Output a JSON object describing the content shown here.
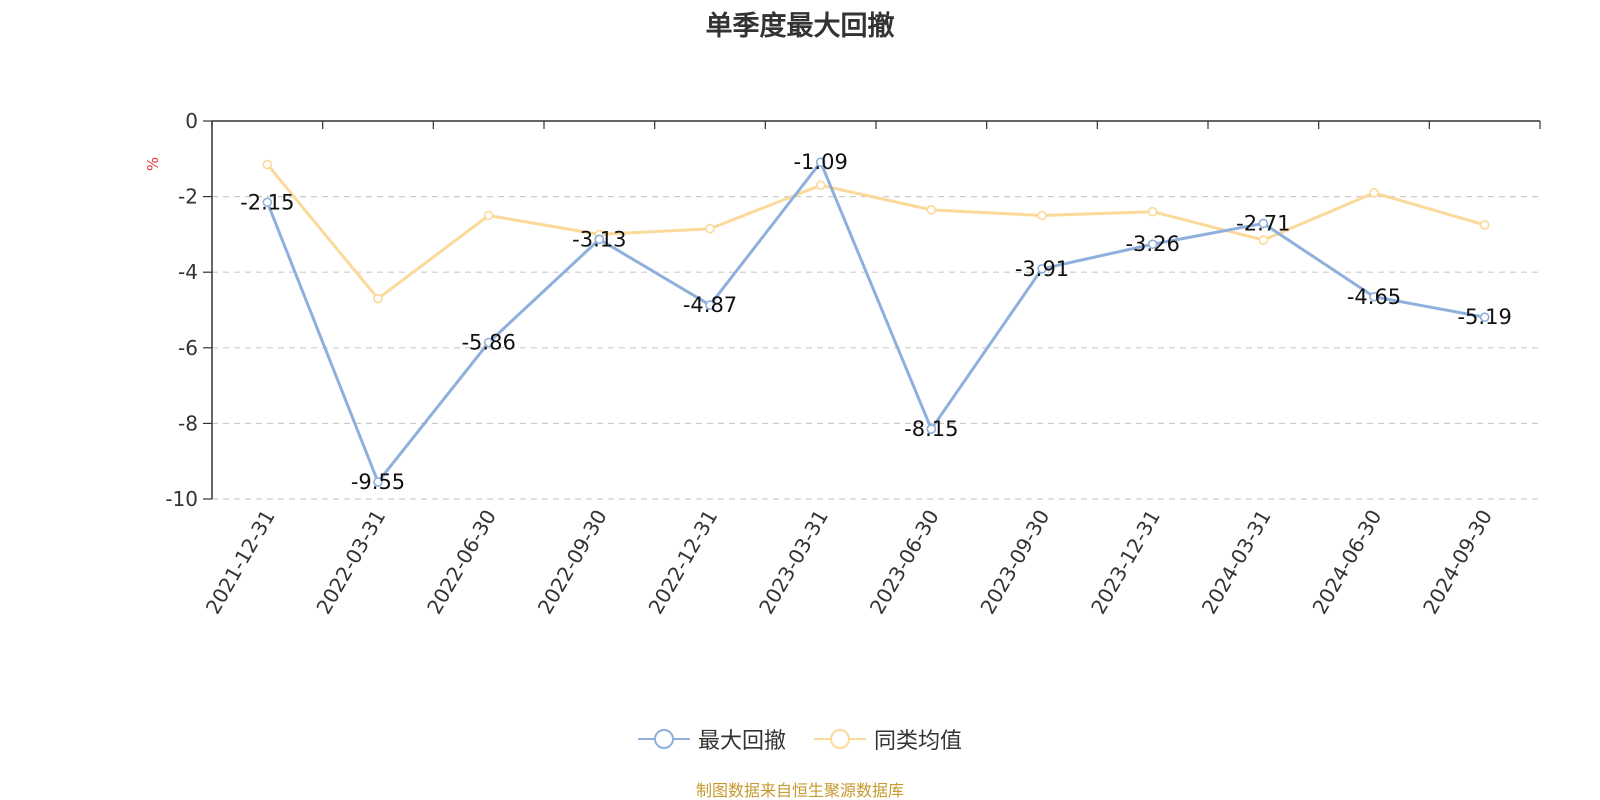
{
  "chart_data": {
    "type": "line",
    "title": "单季度最大回撤",
    "ylabel": "%",
    "categories": [
      "2021-12-31",
      "2022-03-31",
      "2022-06-30",
      "2022-09-30",
      "2022-12-31",
      "2023-03-31",
      "2023-06-30",
      "2023-09-30",
      "2023-12-31",
      "2024-03-31",
      "2024-06-30",
      "2024-09-30"
    ],
    "ylim": [
      -10,
      0
    ],
    "yticks": [
      "0",
      "-2",
      "-4",
      "-6",
      "-8",
      "-10"
    ],
    "grid": true,
    "legend_position": "bottom",
    "series": [
      {
        "name": "最大回撤",
        "color": "#8fb0dc",
        "values": [
          -2.15,
          -9.55,
          -5.86,
          -3.13,
          -4.87,
          -1.09,
          -8.15,
          -3.91,
          -3.26,
          -2.71,
          -4.65,
          -5.19
        ],
        "labels": [
          "-2.15",
          "-9.55",
          "-5.86",
          "-3.13",
          "-4.87",
          "-1.09",
          "-8.15",
          "-3.91",
          "-3.26",
          "-2.71",
          "-4.65",
          "-5.19"
        ]
      },
      {
        "name": "同类均值",
        "color": "#fbd99a",
        "values": [
          -1.15,
          -4.7,
          -2.5,
          -3.0,
          -2.85,
          -1.7,
          -2.35,
          -2.5,
          -2.4,
          -3.15,
          -1.9,
          -2.75
        ]
      }
    ]
  },
  "source_note": "制图数据来自恒生聚源数据库"
}
